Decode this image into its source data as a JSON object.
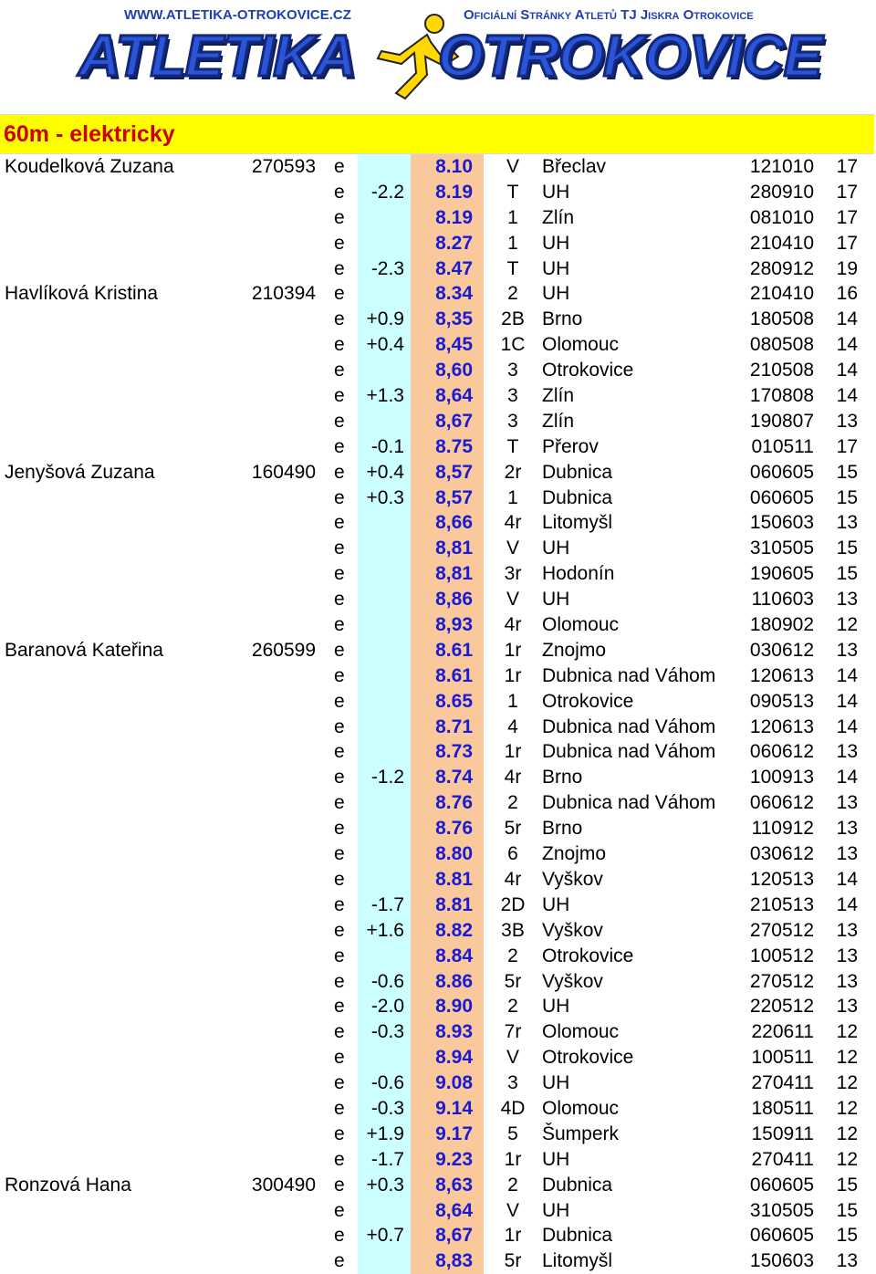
{
  "banner": {
    "url": "WWW.ATLETIKA-OTROKOVICE.CZ",
    "tagline": "Oficiální Stránky Atletů TJ Jiskra Otrokovice",
    "logo_left": "ATLETIKA",
    "logo_right": "OTROKOVICE"
  },
  "section_title": "60m - elektricky",
  "rows": [
    {
      "name": "Koudelková Zuzana",
      "birth": "270593",
      "type": "e",
      "wind": "",
      "time": "8.10",
      "place": "V",
      "venue": "Břeclav",
      "date": "121010",
      "age": "17"
    },
    {
      "name": "",
      "birth": "",
      "type": "e",
      "wind": "-2.2",
      "time": "8.19",
      "place": "T",
      "venue": "UH",
      "date": "280910",
      "age": "17"
    },
    {
      "name": "",
      "birth": "",
      "type": "e",
      "wind": "",
      "time": "8.19",
      "place": "1",
      "venue": "Zlín",
      "date": "081010",
      "age": "17"
    },
    {
      "name": "",
      "birth": "",
      "type": "e",
      "wind": "",
      "time": "8.27",
      "place": "1",
      "venue": "UH",
      "date": "210410",
      "age": "17"
    },
    {
      "name": "",
      "birth": "",
      "type": "e",
      "wind": "-2.3",
      "time": "8.47",
      "place": "T",
      "venue": "UH",
      "date": "280912",
      "age": "19"
    },
    {
      "name": "Havlíková Kristina",
      "birth": "210394",
      "type": "e",
      "wind": "",
      "time": "8.34",
      "place": "2",
      "venue": "UH",
      "date": "210410",
      "age": "16"
    },
    {
      "name": "",
      "birth": "",
      "type": "e",
      "wind": "+0.9",
      "time": "8,35",
      "place": "2B",
      "venue": "Brno",
      "date": "180508",
      "age": "14"
    },
    {
      "name": "",
      "birth": "",
      "type": "e",
      "wind": "+0.4",
      "time": "8,45",
      "place": "1C",
      "venue": "Olomouc",
      "date": "080508",
      "age": "14"
    },
    {
      "name": "",
      "birth": "",
      "type": "e",
      "wind": "",
      "time": "8,60",
      "place": "3",
      "venue": "Otrokovice",
      "date": "210508",
      "age": "14"
    },
    {
      "name": "",
      "birth": "",
      "type": "e",
      "wind": "+1.3",
      "time": "8,64",
      "place": "3",
      "venue": "Zlín",
      "date": "170808",
      "age": "14"
    },
    {
      "name": "",
      "birth": "",
      "type": "e",
      "wind": "",
      "time": "8,67",
      "place": "3",
      "venue": "Zlín",
      "date": "190807",
      "age": "13"
    },
    {
      "name": "",
      "birth": "",
      "type": "e",
      "wind": "-0.1",
      "time": "8.75",
      "place": "T",
      "venue": "Přerov",
      "date": "010511",
      "age": "17"
    },
    {
      "name": "Jenyšová Zuzana",
      "birth": "160490",
      "type": "e",
      "wind": "+0.4",
      "time": "8,57",
      "place": "2r",
      "venue": "Dubnica",
      "date": "060605",
      "age": "15"
    },
    {
      "name": "",
      "birth": "",
      "type": "e",
      "wind": "+0.3",
      "time": "8,57",
      "place": "1",
      "venue": "Dubnica",
      "date": "060605",
      "age": "15"
    },
    {
      "name": "",
      "birth": "",
      "type": "e",
      "wind": "",
      "time": "8,66",
      "place": "4r",
      "venue": "Litomyšl",
      "date": "150603",
      "age": "13"
    },
    {
      "name": "",
      "birth": "",
      "type": "e",
      "wind": "",
      "time": "8,81",
      "place": "V",
      "venue": "UH",
      "date": "310505",
      "age": "15"
    },
    {
      "name": "",
      "birth": "",
      "type": "e",
      "wind": "",
      "time": "8,81",
      "place": "3r",
      "venue": "Hodonín",
      "date": "190605",
      "age": "15"
    },
    {
      "name": "",
      "birth": "",
      "type": "e",
      "wind": "",
      "time": "8,86",
      "place": "V",
      "venue": "UH",
      "date": "110603",
      "age": "13"
    },
    {
      "name": "",
      "birth": "",
      "type": "e",
      "wind": "",
      "time": "8,93",
      "place": "4r",
      "venue": "Olomouc",
      "date": "180902",
      "age": "12"
    },
    {
      "name": "Baranová Kateřina",
      "birth": "260599",
      "type": "e",
      "wind": "",
      "time": "8.61",
      "place": "1r",
      "venue": "Znojmo",
      "date": "030612",
      "age": "13"
    },
    {
      "name": "",
      "birth": "",
      "type": "e",
      "wind": "",
      "time": "8.61",
      "place": "1r",
      "venue": "Dubnica nad Váhom",
      "date": "120613",
      "age": "14"
    },
    {
      "name": "",
      "birth": "",
      "type": "e",
      "wind": "",
      "time": "8.65",
      "place": "1",
      "venue": "Otrokovice",
      "date": "090513",
      "age": "14"
    },
    {
      "name": "",
      "birth": "",
      "type": "e",
      "wind": "",
      "time": "8.71",
      "place": "4",
      "venue": "Dubnica nad Váhom",
      "date": "120613",
      "age": "14"
    },
    {
      "name": "",
      "birth": "",
      "type": "e",
      "wind": "",
      "time": "8.73",
      "place": "1r",
      "venue": "Dubnica nad Váhom",
      "date": "060612",
      "age": "13"
    },
    {
      "name": "",
      "birth": "",
      "type": "e",
      "wind": "-1.2",
      "time": "8.74",
      "place": "4r",
      "venue": "Brno",
      "date": "100913",
      "age": "14"
    },
    {
      "name": "",
      "birth": "",
      "type": "e",
      "wind": "",
      "time": "8.76",
      "place": "2",
      "venue": "Dubnica nad Váhom",
      "date": "060612",
      "age": "13"
    },
    {
      "name": "",
      "birth": "",
      "type": "e",
      "wind": "",
      "time": "8.76",
      "place": "5r",
      "venue": "Brno",
      "date": "110912",
      "age": "13"
    },
    {
      "name": "",
      "birth": "",
      "type": "e",
      "wind": "",
      "time": "8.80",
      "place": "6",
      "venue": "Znojmo",
      "date": "030612",
      "age": "13"
    },
    {
      "name": "",
      "birth": "",
      "type": "e",
      "wind": "",
      "time": "8.81",
      "place": "4r",
      "venue": "Vyškov",
      "date": "120513",
      "age": "14"
    },
    {
      "name": "",
      "birth": "",
      "type": "e",
      "wind": "-1.7",
      "time": "8.81",
      "place": "2D",
      "venue": "UH",
      "date": "210513",
      "age": "14"
    },
    {
      "name": "",
      "birth": "",
      "type": "e",
      "wind": "+1.6",
      "time": "8.82",
      "place": "3B",
      "venue": "Vyškov",
      "date": "270512",
      "age": "13"
    },
    {
      "name": "",
      "birth": "",
      "type": "e",
      "wind": "",
      "time": "8.84",
      "place": "2",
      "venue": "Otrokovice",
      "date": "100512",
      "age": "13"
    },
    {
      "name": "",
      "birth": "",
      "type": "e",
      "wind": "-0.6",
      "time": "8.86",
      "place": "5r",
      "venue": "Vyškov",
      "date": "270512",
      "age": "13"
    },
    {
      "name": "",
      "birth": "",
      "type": "e",
      "wind": "-2.0",
      "time": "8.90",
      "place": "2",
      "venue": "UH",
      "date": "220512",
      "age": "13"
    },
    {
      "name": "",
      "birth": "",
      "type": "e",
      "wind": "-0.3",
      "time": "8.93",
      "place": "7r",
      "venue": "Olomouc",
      "date": "220611",
      "age": "12"
    },
    {
      "name": "",
      "birth": "",
      "type": "e",
      "wind": "",
      "time": "8.94",
      "place": "V",
      "venue": "Otrokovice",
      "date": "100511",
      "age": "12"
    },
    {
      "name": "",
      "birth": "",
      "type": "e",
      "wind": "-0.6",
      "time": "9.08",
      "place": "3",
      "venue": "UH",
      "date": "270411",
      "age": "12"
    },
    {
      "name": "",
      "birth": "",
      "type": "e",
      "wind": "-0.3",
      "time": "9.14",
      "place": "4D",
      "venue": "Olomouc",
      "date": "180511",
      "age": "12"
    },
    {
      "name": "",
      "birth": "",
      "type": "e",
      "wind": "+1.9",
      "time": "9.17",
      "place": "5",
      "venue": "Šumperk",
      "date": "150911",
      "age": "12"
    },
    {
      "name": "",
      "birth": "",
      "type": "e",
      "wind": "-1.7",
      "time": "9.23",
      "place": "1r",
      "venue": "UH",
      "date": "270411",
      "age": "12"
    },
    {
      "name": "Ronzová Hana",
      "birth": "300490",
      "type": "e",
      "wind": "+0.3",
      "time": "8,63",
      "place": "2",
      "venue": "Dubnica",
      "date": "060605",
      "age": "15"
    },
    {
      "name": "",
      "birth": "",
      "type": "e",
      "wind": "",
      "time": "8,64",
      "place": "V",
      "venue": "UH",
      "date": "310505",
      "age": "15"
    },
    {
      "name": "",
      "birth": "",
      "type": "e",
      "wind": "+0.7",
      "time": "8,67",
      "place": "1r",
      "venue": "Dubnica",
      "date": "060605",
      "age": "15"
    },
    {
      "name": "",
      "birth": "",
      "type": "e",
      "wind": "",
      "time": "8,83",
      "place": "5r",
      "venue": "Litomyšl",
      "date": "150603",
      "age": "13"
    }
  ]
}
